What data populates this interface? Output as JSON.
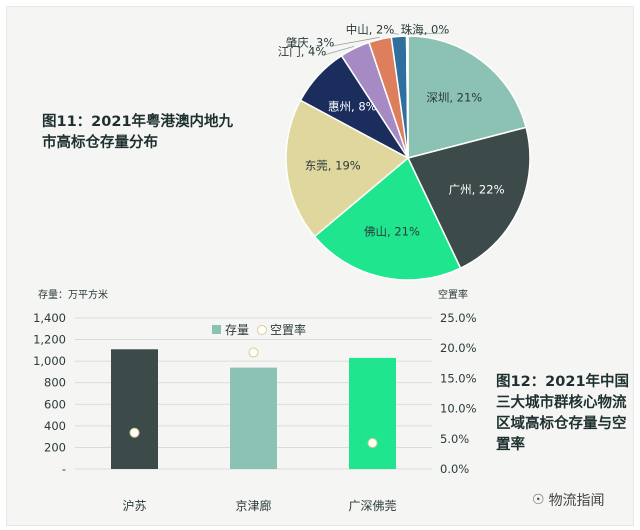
{
  "figure1": {
    "title": "图11：2021年粤港澳内地九市高标仓存量分布"
  },
  "figure2": {
    "title": "图12：2021年中国三大城市群核心物流区域高标仓存量与空置率"
  },
  "watermark": {
    "text": "物流指闻",
    "icon": "wechat-icon"
  },
  "chart_data": [
    {
      "type": "pie",
      "title": "图11：2021年粤港澳内地九市高标仓存量分布",
      "slices": [
        {
          "name": "深圳",
          "value": 21,
          "label": "深圳, 21%",
          "color": "#8cc2b3"
        },
        {
          "name": "广州",
          "value": 22,
          "label": "广州, 22%",
          "color": "#3d4a4a"
        },
        {
          "name": "佛山",
          "value": 21,
          "label": "佛山, 21%",
          "color": "#1fe68e"
        },
        {
          "name": "东莞",
          "value": 19,
          "label": "东莞, 19%",
          "color": "#e0d79e"
        },
        {
          "name": "惠州",
          "value": 8,
          "label": "惠州, 8%",
          "color": "#1a2d5c"
        },
        {
          "name": "江门",
          "value": 4,
          "label": "江门, 4%",
          "color": "#a58ac4"
        },
        {
          "name": "肇庆",
          "value": 3,
          "label": "肇庆, 3%",
          "color": "#dd7f5c"
        },
        {
          "name": "中山",
          "value": 2,
          "label": "中山, 2%",
          "color": "#2e6fa0"
        },
        {
          "name": "珠海",
          "value": 0,
          "label": "珠海, 0%",
          "color": "#c9c9c9"
        }
      ]
    },
    {
      "type": "bar",
      "title": "图12：2021年中国三大城市群核心物流区域高标仓存量与空置率",
      "categories": [
        "沪苏",
        "京津廊",
        "广深佛莞"
      ],
      "series": [
        {
          "name": "存量",
          "type": "bar",
          "axis": "left",
          "values": [
            1110,
            940,
            1030
          ],
          "colors": [
            "#3d4a4a",
            "#8cc2b3",
            "#1fe68e"
          ]
        },
        {
          "name": "空置率",
          "type": "scatter",
          "axis": "right",
          "values": [
            6.0,
            19.3,
            4.3
          ],
          "color": "#ffffff"
        }
      ],
      "ylabel": "存量：万平方米",
      "y2label": "空置率",
      "ylim": [
        0,
        1400
      ],
      "yticks": [
        "-",
        "200",
        "400",
        "600",
        "800",
        "1,000",
        "1,200",
        "1,400"
      ],
      "y2lim": [
        0,
        25
      ],
      "y2ticks": [
        "0.0%",
        "5.0%",
        "10.0%",
        "15.0%",
        "20.0%",
        "25.0%"
      ],
      "grid": true,
      "legend": "top-center"
    }
  ]
}
